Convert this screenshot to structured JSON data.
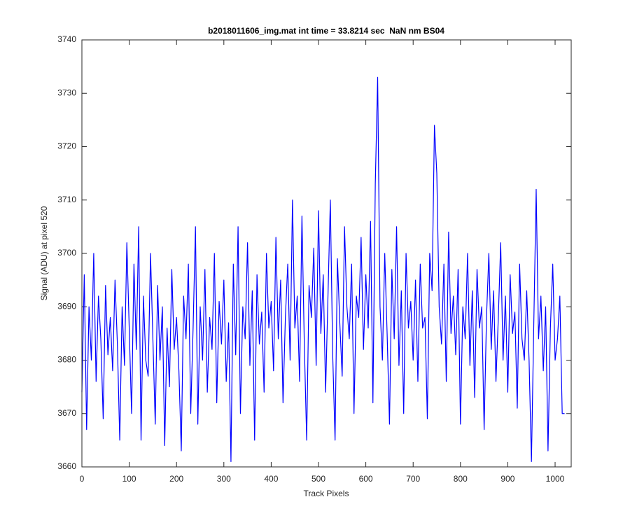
{
  "chart_data": {
    "type": "line",
    "title": "b2018011606_img.mat int time = 33.8214 sec  NaN nm BS04",
    "xlabel": "Track Pixels",
    "ylabel": "Signal (ADU) at pixel 520",
    "color": "#0000ff",
    "x": [
      0,
      5,
      10,
      15,
      20,
      25,
      30,
      35,
      40,
      45,
      50,
      55,
      60,
      65,
      70,
      75,
      80,
      85,
      90,
      95,
      100,
      105,
      110,
      115,
      120,
      125,
      130,
      135,
      140,
      145,
      150,
      155,
      160,
      165,
      170,
      175,
      180,
      185,
      190,
      195,
      200,
      205,
      210,
      215,
      220,
      225,
      230,
      235,
      240,
      245,
      250,
      255,
      260,
      265,
      270,
      275,
      280,
      285,
      290,
      295,
      300,
      305,
      310,
      315,
      320,
      325,
      330,
      335,
      340,
      345,
      350,
      355,
      360,
      365,
      370,
      375,
      380,
      385,
      390,
      395,
      400,
      405,
      410,
      415,
      420,
      425,
      430,
      435,
      440,
      445,
      450,
      455,
      460,
      465,
      470,
      475,
      480,
      485,
      490,
      495,
      500,
      505,
      510,
      515,
      520,
      525,
      530,
      535,
      540,
      545,
      550,
      555,
      560,
      565,
      570,
      575,
      580,
      585,
      590,
      595,
      600,
      605,
      610,
      615,
      620,
      625,
      630,
      635,
      640,
      645,
      650,
      655,
      660,
      665,
      670,
      675,
      680,
      685,
      690,
      695,
      700,
      705,
      710,
      715,
      720,
      725,
      730,
      735,
      740,
      745,
      750,
      755,
      760,
      765,
      770,
      775,
      780,
      785,
      790,
      795,
      800,
      805,
      810,
      815,
      820,
      825,
      830,
      835,
      840,
      845,
      850,
      855,
      860,
      865,
      870,
      875,
      880,
      885,
      890,
      895,
      900,
      905,
      910,
      915,
      920,
      925,
      930,
      935,
      940,
      945,
      950,
      955,
      960,
      965,
      970,
      975,
      980,
      985,
      990,
      995,
      1000,
      1005,
      1010,
      1015,
      1020
    ],
    "values": [
      3674,
      3696,
      3667,
      3690,
      3680,
      3700,
      3676,
      3692,
      3684,
      3669,
      3694,
      3681,
      3688,
      3678,
      3695,
      3683,
      3665,
      3690,
      3679,
      3702,
      3686,
      3670,
      3698,
      3682,
      3705,
      3665,
      3692,
      3680,
      3677,
      3700,
      3684,
      3668,
      3694,
      3680,
      3690,
      3664,
      3686,
      3675,
      3697,
      3682,
      3688,
      3678,
      3663,
      3692,
      3684,
      3698,
      3670,
      3686,
      3705,
      3668,
      3690,
      3680,
      3697,
      3674,
      3688,
      3682,
      3700,
      3672,
      3691,
      3683,
      3695,
      3676,
      3687,
      3661,
      3698,
      3681,
      3705,
      3670,
      3690,
      3684,
      3702,
      3679,
      3693,
      3665,
      3696,
      3683,
      3689,
      3674,
      3700,
      3686,
      3691,
      3678,
      3703,
      3684,
      3695,
      3672,
      3688,
      3698,
      3680,
      3710,
      3686,
      3692,
      3676,
      3707,
      3683,
      3665,
      3694,
      3688,
      3701,
      3679,
      3708,
      3685,
      3696,
      3674,
      3692,
      3710,
      3681,
      3665,
      3699,
      3687,
      3677,
      3705,
      3690,
      3684,
      3698,
      3670,
      3692,
      3688,
      3703,
      3682,
      3696,
      3686,
      3706,
      3672,
      3713,
      3733,
      3690,
      3680,
      3700,
      3685,
      3668,
      3697,
      3684,
      3705,
      3679,
      3693,
      3670,
      3700,
      3686,
      3691,
      3680,
      3695,
      3676,
      3698,
      3686,
      3688,
      3669,
      3700,
      3693,
      3724,
      3715,
      3690,
      3683,
      3698,
      3676,
      3704,
      3685,
      3692,
      3681,
      3697,
      3668,
      3690,
      3684,
      3700,
      3679,
      3693,
      3673,
      3697,
      3686,
      3690,
      3667,
      3688,
      3700,
      3682,
      3693,
      3676,
      3688,
      3702,
      3680,
      3692,
      3674,
      3696,
      3685,
      3689,
      3671,
      3698,
      3684,
      3680,
      3693,
      3680,
      3661,
      3687,
      3712,
      3684,
      3692,
      3678,
      3690,
      3663,
      3686,
      3698,
      3680,
      3684,
      3692,
      3670,
      3670
    ],
    "xlim": [
      0,
      1034
    ],
    "ylim": [
      3660,
      3740
    ],
    "xticks": [
      0,
      100,
      200,
      300,
      400,
      500,
      600,
      700,
      800,
      900,
      1000
    ],
    "yticks": [
      3660,
      3670,
      3680,
      3690,
      3700,
      3710,
      3720,
      3730,
      3740
    ],
    "grid": false
  }
}
